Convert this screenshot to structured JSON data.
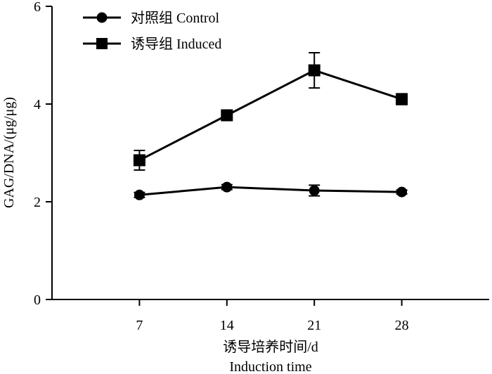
{
  "chart_data": {
    "type": "line",
    "xlabel": "诱导培养时间/d",
    "xlabel_en": "Induction time",
    "ylabel": "GAG/DNA/(μg/μg)",
    "x": [
      7,
      14,
      21,
      28
    ],
    "x_tick_labels": [
      "7",
      "14",
      "21",
      "28"
    ],
    "xlim": [
      0,
      35
    ],
    "ylim": [
      0,
      6
    ],
    "y_ticks": [
      0,
      2,
      4,
      6
    ],
    "y_tick_labels": [
      "0",
      "2",
      "4",
      "6"
    ],
    "grid": false,
    "legend_position": "top-left",
    "series": [
      {
        "name": "对照组 Control",
        "marker": "circle",
        "values": [
          2.14,
          2.3,
          2.23,
          2.2
        ],
        "errors": [
          0.05,
          0.05,
          0.11,
          0.04
        ]
      },
      {
        "name": "诱导组 Induced",
        "marker": "square",
        "values": [
          2.85,
          3.77,
          4.69,
          4.1
        ],
        "errors": [
          0.2,
          0.05,
          0.36,
          0.11
        ]
      }
    ],
    "colors": {
      "line": "#000000"
    }
  }
}
